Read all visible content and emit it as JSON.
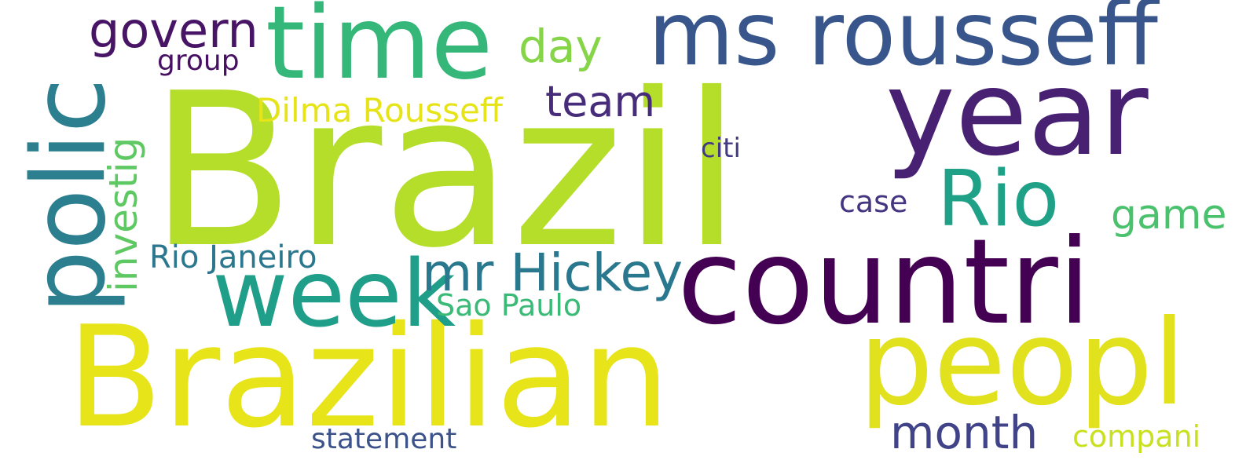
{
  "words": {
    "brazil": {
      "text": "Brazil",
      "color": "#b5de2b"
    },
    "brazilian": {
      "text": "Brazilian",
      "color": "#e7e419"
    },
    "year": {
      "text": "year",
      "color": "#482173"
    },
    "countri": {
      "text": "countri",
      "color": "#440154"
    },
    "peopl": {
      "text": "peopl",
      "color": "#e1e11e"
    },
    "ms_rousseff": {
      "text": "ms rousseff",
      "color": "#39568c"
    },
    "time": {
      "text": "time",
      "color": "#35b779"
    },
    "week": {
      "text": "week",
      "color": "#1f9e89"
    },
    "rio": {
      "text": "Rio",
      "color": "#1fa187"
    },
    "polic": {
      "text": "polic",
      "color": "#2c7f8e"
    },
    "mr_hickey": {
      "text": "mr Hickey",
      "color": "#2a788e"
    },
    "month": {
      "text": "month",
      "color": "#404387"
    },
    "govern": {
      "text": "govern",
      "color": "#481466"
    },
    "day": {
      "text": "day",
      "color": "#86d549"
    },
    "team": {
      "text": "team",
      "color": "#472c7a"
    },
    "game": {
      "text": "game",
      "color": "#4ac16d"
    },
    "investig": {
      "text": "investig",
      "color": "#5ec962"
    },
    "dilma": {
      "text": "Dilma Rousseff",
      "color": "#e6e419"
    },
    "rio_janeiro": {
      "text": "Rio Janeiro",
      "color": "#2a778e"
    },
    "sao_paulo": {
      "text": "Sao Paulo",
      "color": "#3aba76"
    },
    "compani": {
      "text": "compani",
      "color": "#c8e020"
    },
    "statement": {
      "text": "statement",
      "color": "#3b528b"
    },
    "case": {
      "text": "case",
      "color": "#453581"
    },
    "group": {
      "text": "group",
      "color": "#471063"
    },
    "citi": {
      "text": "citi",
      "color": "#443a83"
    }
  }
}
